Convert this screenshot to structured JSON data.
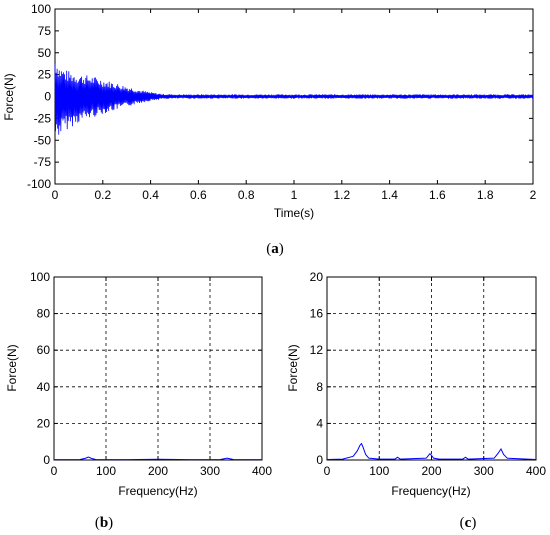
{
  "chart_data": [
    {
      "type": "line",
      "panel_label": "a",
      "xlabel": "Time(s)",
      "ylabel": "Force(N)",
      "xlim": [
        0,
        2
      ],
      "ylim": [
        -100,
        100
      ],
      "xticks": [
        "0",
        "0.2",
        "0.4",
        "0.6",
        "0.8",
        "1",
        "1.2",
        "1.4",
        "1.6",
        "1.8",
        "2"
      ],
      "yticks": [
        "100",
        "75",
        "50",
        "25",
        "0",
        "-25",
        "-50",
        "-75",
        "-100"
      ],
      "grid": false,
      "line_color": "#0000ff",
      "series": [
        {
          "description_of_shape": "decaying oscillation envelope",
          "x": [
            0,
            0.02,
            0.05,
            0.1,
            0.15,
            0.2,
            0.25,
            0.3,
            0.35,
            0.4,
            0.45,
            0.5,
            0.6,
            0.8,
            1.0,
            1.2,
            1.4,
            1.6,
            1.8,
            2.0
          ],
          "upper": [
            48,
            35,
            30,
            26,
            24,
            20,
            16,
            12,
            8,
            5,
            3,
            2.5,
            2.5,
            2.5,
            2.5,
            2.5,
            2.5,
            2.5,
            2.5,
            2.5
          ],
          "lower": [
            -50,
            -45,
            -38,
            -30,
            -25,
            -20,
            -16,
            -12,
            -8,
            -5,
            -3,
            -2.5,
            -2.5,
            -2.5,
            -2.5,
            -2.5,
            -2.5,
            -2.5,
            -2.5,
            -2.5
          ]
        }
      ]
    },
    {
      "type": "line",
      "panel_label": "b",
      "xlabel": "Frequency(Hz)",
      "ylabel": "Force(N)",
      "xlim": [
        0,
        400
      ],
      "ylim": [
        0,
        100
      ],
      "xticks": [
        "0",
        "100",
        "200",
        "300",
        "400"
      ],
      "yticks": [
        "100",
        "80",
        "60",
        "40",
        "20",
        "0"
      ],
      "grid": true,
      "line_color": "#0000ff",
      "series": [
        {
          "x": [
            0,
            50,
            60,
            66,
            72,
            80,
            130,
            200,
            260,
            320,
            333,
            345,
            400
          ],
          "y": [
            0.2,
            0.3,
            0.9,
            1.6,
            0.9,
            0.3,
            0.2,
            0.4,
            0.2,
            0.3,
            1.0,
            0.3,
            0.2
          ]
        }
      ]
    },
    {
      "type": "line",
      "panel_label": "c",
      "xlabel": "Frequency(Hz)",
      "ylabel": "Force(N)",
      "xlim": [
        0,
        400
      ],
      "ylim": [
        0,
        20
      ],
      "xticks": [
        "0",
        "100",
        "200",
        "300",
        "400"
      ],
      "yticks": [
        "20",
        "16",
        "12",
        "8",
        "4",
        "0"
      ],
      "grid": true,
      "line_color": "#0000ff",
      "series": [
        {
          "x": [
            0,
            30,
            50,
            58,
            63,
            66,
            69,
            74,
            80,
            100,
            130,
            135,
            140,
            190,
            197,
            200,
            204,
            215,
            260,
            265,
            270,
            320,
            327,
            333,
            338,
            345,
            400
          ],
          "y": [
            0.05,
            0.1,
            0.4,
            1.0,
            1.6,
            1.8,
            1.4,
            0.6,
            0.2,
            0.1,
            0.1,
            0.3,
            0.1,
            0.2,
            0.7,
            0.5,
            0.2,
            0.1,
            0.1,
            0.3,
            0.1,
            0.2,
            0.7,
            1.2,
            0.6,
            0.2,
            0.05
          ]
        }
      ]
    }
  ]
}
